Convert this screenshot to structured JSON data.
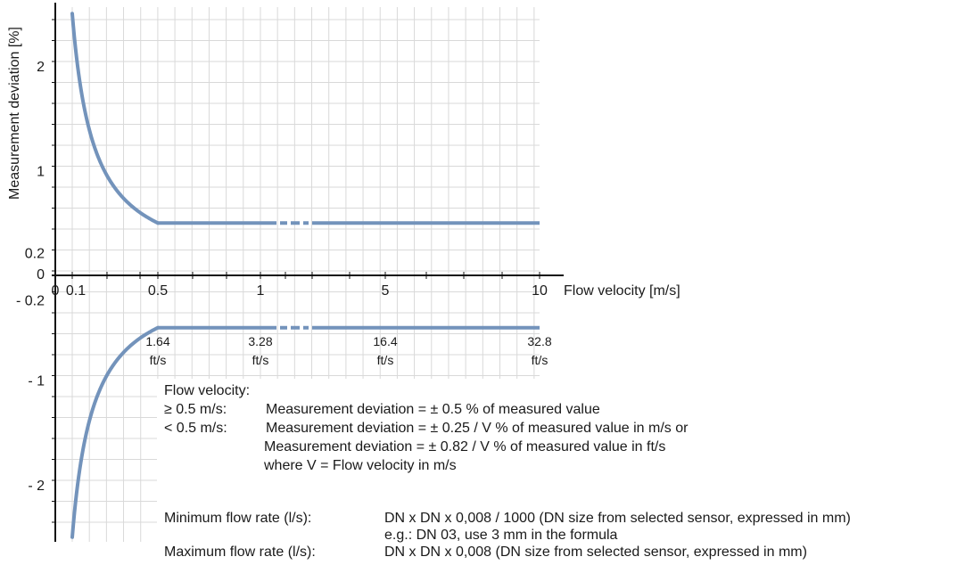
{
  "chart_data": {
    "type": "line",
    "title": "",
    "ylabel": "Measurement deviation [%]",
    "xlabel": "Flow velocity [m/s]",
    "x_ticks_ms": [
      "0",
      "0.1",
      "0.5",
      "1",
      "5",
      "10"
    ],
    "x_ticks_fts": [
      {
        "value": "1.64",
        "unit": "ft/s"
      },
      {
        "value": "3.28",
        "unit": "ft/s"
      },
      {
        "value": "16.4",
        "unit": "ft/s"
      },
      {
        "value": "32.8",
        "unit": "ft/s"
      }
    ],
    "y_ticks": [
      "2",
      "1",
      "0.2",
      "0",
      "- 0.2",
      "- 1",
      "- 2"
    ],
    "ylim": [
      -2.5,
      2.5
    ],
    "series": [
      {
        "values_x": [
          0.1,
          0.15,
          0.2,
          0.25,
          0.3,
          0.35,
          0.4,
          0.45,
          0.5,
          1,
          5,
          10
        ],
        "upper_deviation": [
          2.5,
          1.67,
          1.25,
          1.0,
          0.83,
          0.71,
          0.63,
          0.56,
          0.5,
          0.5,
          0.5,
          0.5
        ],
        "lower_deviation": [
          -2.5,
          -1.67,
          -1.25,
          -1.0,
          -0.83,
          -0.71,
          -0.63,
          -0.56,
          -0.5,
          -0.5,
          -0.5,
          -0.5
        ]
      }
    ],
    "grid": true,
    "line_color": "#7393bb"
  },
  "notes": {
    "heading": "Flow velocity:",
    "cond1": "≥ 0.5 m/s:",
    "text1": "Measurement deviation = ± 0.5 % of measured value",
    "cond2": "< 0.5 m/s:",
    "text2": "Measurement deviation = ± 0.25 / V % of measured value in m/s or",
    "text3": "Measurement deviation = ± 0.82 / V % of measured value in ft/s",
    "text4": "where V = Flow velocity in m/s"
  },
  "formulas": {
    "min_label": "Minimum flow rate (l/s):",
    "min_text": "DN x DN x 0,008 / 1000 (DN size from selected sensor, expressed in mm)",
    "min_example": "e.g.: DN 03, use 3 mm in the formula",
    "max_label": "Maximum flow rate (l/s):",
    "max_text": "DN x DN x 0,008 (DN size from selected sensor, expressed in mm)"
  }
}
